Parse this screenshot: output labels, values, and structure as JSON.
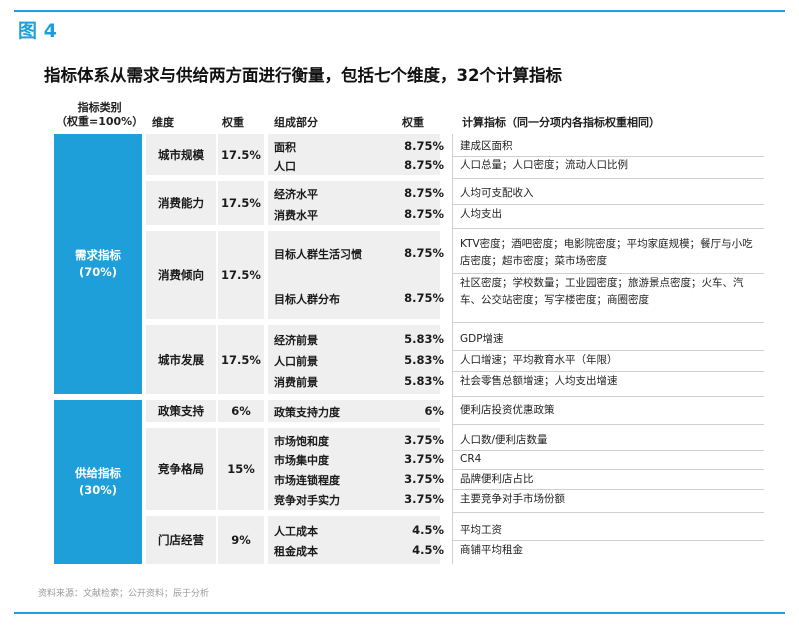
{
  "figure_label": "图 4",
  "headline": "指标体系从需求与供给两方面进行衡量，包括七个维度，32个计算指标",
  "headers": {
    "category_line1": "指标类别",
    "category_line2": "（权重=100%）",
    "dimension": "维度",
    "weight": "权重",
    "component": "组成部分",
    "component_weight": "权重",
    "calc": "计算指标（同一分项内各指标权重相同）"
  },
  "categories": [
    {
      "name": "需求指标",
      "weight": "(70%)"
    },
    {
      "name": "供给指标",
      "weight": "(30%)"
    }
  ],
  "dimensions": [
    {
      "name": "城市规模",
      "weight": "17.5%",
      "components": [
        {
          "name": "面积",
          "weight": "8.75%",
          "calc": "建成区面积"
        },
        {
          "name": "人口",
          "weight": "8.75%",
          "calc": "人口总量；人口密度；流动人口比例"
        }
      ]
    },
    {
      "name": "消费能力",
      "weight": "17.5%",
      "components": [
        {
          "name": "经济水平",
          "weight": "8.75%",
          "calc": "人均可支配收入"
        },
        {
          "name": "消费水平",
          "weight": "8.75%",
          "calc": "人均支出"
        }
      ]
    },
    {
      "name": "消费倾向",
      "weight": "17.5%",
      "components": [
        {
          "name": "目标人群生活习惯",
          "weight": "8.75%",
          "calc": "KTV密度；酒吧密度；电影院密度；平均家庭规模；餐厅与小吃店密度；超市密度；菜市场密度"
        },
        {
          "name": "目标人群分布",
          "weight": "8.75%",
          "calc": "社区密度；学校数量；工业园密度；旅游景点密度；火车、汽车、公交站密度；写字楼密度；商圈密度"
        }
      ]
    },
    {
      "name": "城市发展",
      "weight": "17.5%",
      "components": [
        {
          "name": "经济前景",
          "weight": "5.83%",
          "calc": "GDP增速"
        },
        {
          "name": "人口前景",
          "weight": "5.83%",
          "calc": "人口增速；平均教育水平（年限）"
        },
        {
          "name": "消费前景",
          "weight": "5.83%",
          "calc": "社会零售总额增速；人均支出增速"
        }
      ]
    },
    {
      "name": "政策支持",
      "weight": "6%",
      "components": [
        {
          "name": "政策支持力度",
          "weight": "6%",
          "calc": "便利店投资优惠政策"
        }
      ]
    },
    {
      "name": "竞争格局",
      "weight": "15%",
      "components": [
        {
          "name": "市场饱和度",
          "weight": "3.75%",
          "calc": "人口数/便利店数量"
        },
        {
          "name": "市场集中度",
          "weight": "3.75%",
          "calc": "CR4"
        },
        {
          "name": "市场连锁程度",
          "weight": "3.75%",
          "calc": "品牌便利店占比"
        },
        {
          "name": "竞争对手实力",
          "weight": "3.75%",
          "calc": "主要竞争对手市场份额"
        }
      ]
    },
    {
      "name": "门店经营",
      "weight": "9%",
      "components": [
        {
          "name": "人工成本",
          "weight": "4.5%",
          "calc": "平均工资"
        },
        {
          "name": "租金成本",
          "weight": "4.5%",
          "calc": "商铺平均租金"
        }
      ]
    }
  ],
  "source": "资料来源：文献检索；公开资料；辰于分析",
  "colors": {
    "accent": "#1f9fd9",
    "band": "#efefef"
  }
}
